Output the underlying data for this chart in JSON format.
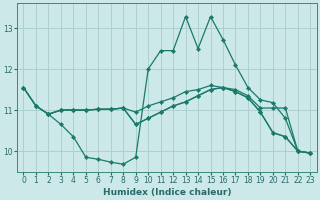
{
  "xlabel": "Humidex (Indice chaleur)",
  "bg_color": "#cce8e8",
  "grid_color": "#aacccc",
  "line_color": "#1a7a6a",
  "xlim": [
    -0.5,
    23.5
  ],
  "ylim": [
    9.5,
    13.6
  ],
  "yticks": [
    10,
    11,
    12,
    13
  ],
  "xticks": [
    0,
    1,
    2,
    3,
    4,
    5,
    6,
    7,
    8,
    9,
    10,
    11,
    12,
    13,
    14,
    15,
    16,
    17,
    18,
    19,
    20,
    21,
    22,
    23
  ],
  "curve1_x": [
    0,
    1,
    2,
    3,
    4,
    5,
    6,
    7,
    8,
    9,
    10,
    11,
    12,
    13,
    14,
    15,
    16,
    17,
    18,
    19,
    20,
    21,
    22,
    23
  ],
  "curve1_y": [
    11.55,
    11.1,
    10.9,
    10.65,
    10.35,
    9.85,
    9.8,
    9.73,
    9.68,
    9.85,
    12.0,
    12.45,
    12.45,
    13.28,
    12.5,
    13.28,
    12.72,
    12.1,
    11.55,
    11.25,
    11.18,
    10.8,
    10.0,
    9.95
  ],
  "curve2_x": [
    0,
    1,
    2,
    3,
    4,
    5,
    6,
    7,
    8,
    9,
    10,
    11,
    12,
    13,
    14,
    15,
    16,
    17,
    18,
    19,
    20,
    21,
    22,
    23
  ],
  "curve2_y": [
    11.55,
    11.1,
    10.9,
    11.0,
    11.0,
    11.0,
    11.02,
    11.02,
    11.05,
    10.95,
    11.1,
    11.2,
    11.3,
    11.45,
    11.5,
    11.6,
    11.55,
    11.5,
    11.35,
    11.05,
    11.05,
    11.05,
    10.0,
    9.95
  ],
  "curve3_x": [
    0,
    1,
    2,
    3,
    4,
    5,
    6,
    7,
    8,
    9,
    10,
    11,
    12,
    13,
    14,
    15,
    16,
    17,
    18,
    19,
    20,
    21,
    22,
    23
  ],
  "curve3_y": [
    11.55,
    11.1,
    10.9,
    11.0,
    11.0,
    11.0,
    11.02,
    11.02,
    11.05,
    10.65,
    10.8,
    10.95,
    11.1,
    11.2,
    11.35,
    11.5,
    11.55,
    11.45,
    11.3,
    10.95,
    10.45,
    10.35,
    10.0,
    9.95
  ],
  "curve4_x": [
    2,
    3,
    4,
    5,
    6,
    7,
    8,
    9,
    10,
    11,
    12,
    13,
    14,
    15,
    16,
    17,
    18,
    19,
    20,
    21,
    22,
    23
  ],
  "curve4_y": [
    10.9,
    11.0,
    11.0,
    11.0,
    11.02,
    11.02,
    11.05,
    10.65,
    10.8,
    10.95,
    11.1,
    11.2,
    11.35,
    11.5,
    11.55,
    11.45,
    11.3,
    10.95,
    10.45,
    10.35,
    10.0,
    9.95
  ]
}
